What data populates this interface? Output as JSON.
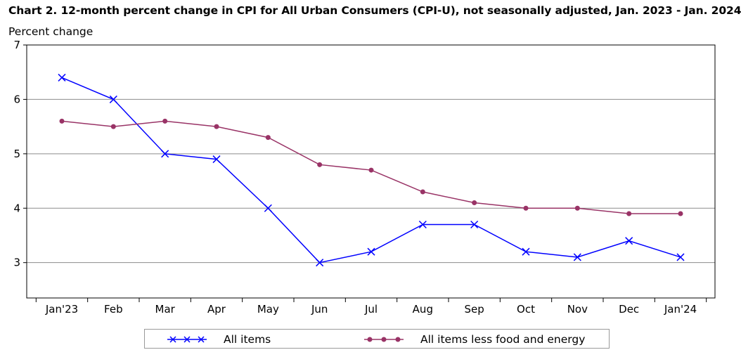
{
  "chart_data": {
    "type": "line",
    "title": "Chart 2. 12-month percent change in CPI for All Urban Consumers (CPI-U), not seasonally adjusted, Jan. 2023 - Jan. 2024",
    "ylabel": "Percent change",
    "xlabel": "",
    "categories": [
      "Jan'23",
      "Feb",
      "Mar",
      "Apr",
      "May",
      "Jun",
      "Jul",
      "Aug",
      "Sep",
      "Oct",
      "Nov",
      "Dec",
      "Jan'24"
    ],
    "ylim": [
      2.35,
      7
    ],
    "yticks": [
      3,
      4,
      5,
      6,
      7
    ],
    "grid": "horizontal",
    "legend_position": "bottom",
    "series": [
      {
        "name": "All items",
        "color": "#0000ff",
        "marker": "x",
        "values": [
          6.4,
          6.0,
          5.0,
          4.9,
          4.0,
          3.0,
          3.2,
          3.7,
          3.7,
          3.2,
          3.1,
          3.4,
          3.1
        ]
      },
      {
        "name": "All items less food and energy",
        "color": "#993366",
        "marker": "circle",
        "values": [
          5.6,
          5.5,
          5.6,
          5.5,
          5.3,
          4.8,
          4.7,
          4.3,
          4.1,
          4.0,
          4.0,
          3.9,
          3.9
        ]
      }
    ]
  }
}
